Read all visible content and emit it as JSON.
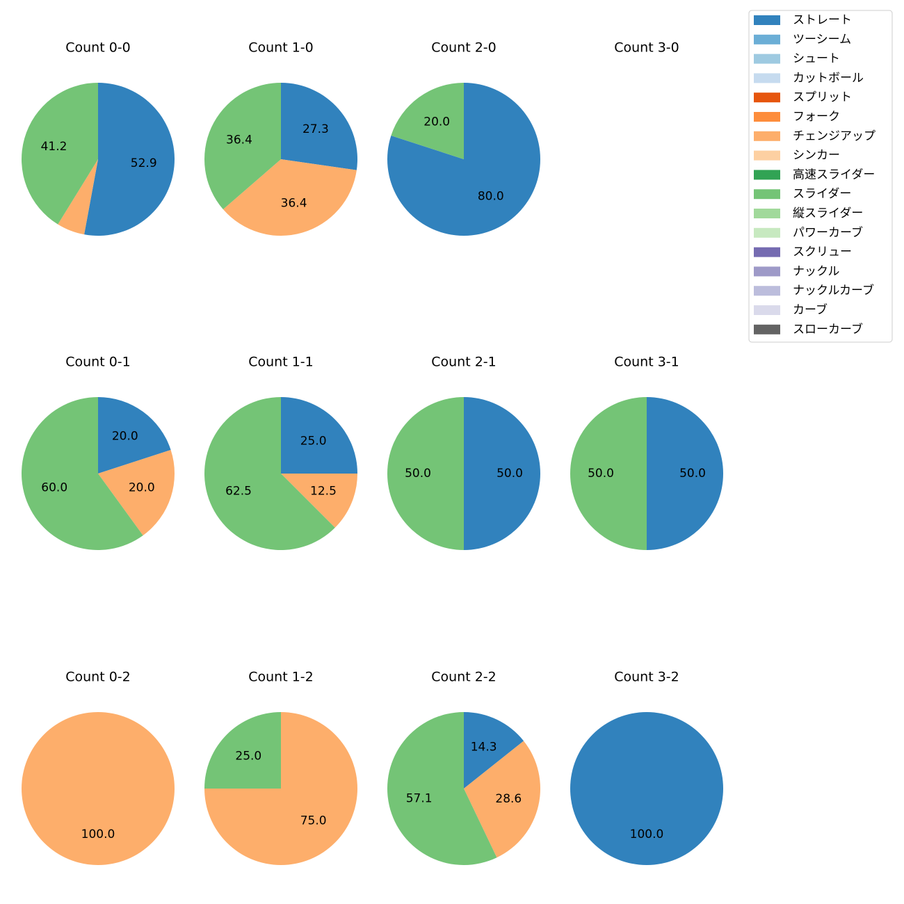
{
  "chart_data": [
    {
      "type": "pie",
      "title": "Count 0-0",
      "values": [
        52.9,
        5.9,
        41.2
      ],
      "value_labels": [
        "52.9",
        null,
        "41.2"
      ],
      "colors": [
        "#3182bd",
        "#fdae6b",
        "#74c476"
      ]
    },
    {
      "type": "pie",
      "title": "Count 1-0",
      "values": [
        27.3,
        36.4,
        36.4
      ],
      "value_labels": [
        "27.3",
        "36.4",
        "36.4"
      ],
      "colors": [
        "#3182bd",
        "#fdae6b",
        "#74c476"
      ]
    },
    {
      "type": "pie",
      "title": "Count 2-0",
      "values": [
        80.0,
        20.0
      ],
      "value_labels": [
        "80.0",
        "20.0"
      ],
      "colors": [
        "#3182bd",
        "#74c476"
      ]
    },
    {
      "type": "pie",
      "title": "Count 3-0",
      "values": [],
      "value_labels": [],
      "colors": []
    },
    {
      "type": "pie",
      "title": "Count 0-1",
      "values": [
        20.0,
        20.0,
        60.0
      ],
      "value_labels": [
        "20.0",
        "20.0",
        "60.0"
      ],
      "colors": [
        "#3182bd",
        "#fdae6b",
        "#74c476"
      ]
    },
    {
      "type": "pie",
      "title": "Count 1-1",
      "values": [
        25.0,
        12.5,
        62.5
      ],
      "value_labels": [
        "25.0",
        "12.5",
        "62.5"
      ],
      "colors": [
        "#3182bd",
        "#fdae6b",
        "#74c476"
      ]
    },
    {
      "type": "pie",
      "title": "Count 2-1",
      "values": [
        50.0,
        50.0
      ],
      "value_labels": [
        "50.0",
        "50.0"
      ],
      "colors": [
        "#3182bd",
        "#74c476"
      ]
    },
    {
      "type": "pie",
      "title": "Count 3-1",
      "values": [
        50.0,
        50.0
      ],
      "value_labels": [
        "50.0",
        "50.0"
      ],
      "colors": [
        "#3182bd",
        "#74c476"
      ]
    },
    {
      "type": "pie",
      "title": "Count 0-2",
      "values": [
        100.0
      ],
      "value_labels": [
        "100.0"
      ],
      "colors": [
        "#fdae6b"
      ]
    },
    {
      "type": "pie",
      "title": "Count 1-2",
      "values": [
        75.0,
        25.0
      ],
      "value_labels": [
        "75.0",
        "25.0"
      ],
      "colors": [
        "#fdae6b",
        "#74c476"
      ]
    },
    {
      "type": "pie",
      "title": "Count 2-2",
      "values": [
        14.3,
        28.6,
        57.1
      ],
      "value_labels": [
        "14.3",
        "28.6",
        "57.1"
      ],
      "colors": [
        "#3182bd",
        "#fdae6b",
        "#74c476"
      ]
    },
    {
      "type": "pie",
      "title": "Count 3-2",
      "values": [
        100.0
      ],
      "value_labels": [
        "100.0"
      ],
      "colors": [
        "#3182bd"
      ]
    }
  ],
  "legend": {
    "labels": [
      "ストレート",
      "ツーシーム",
      "シュート",
      "カットボール",
      "スプリット",
      "フォーク",
      "チェンジアップ",
      "シンカー",
      "高速スライダー",
      "スライダー",
      "縦スライダー",
      "パワーカーブ",
      "スクリュー",
      "ナックル",
      "ナックルカーブ",
      "カーブ",
      "スローカーブ"
    ],
    "colors": [
      "#3182bd",
      "#6baed6",
      "#9ecae1",
      "#c6dbef",
      "#e6550d",
      "#fd8d3c",
      "#fdae6b",
      "#fdd0a2",
      "#31a354",
      "#74c476",
      "#a1d99b",
      "#c7e9c0",
      "#756bb1",
      "#9e9ac8",
      "#bcbddc",
      "#dadaeb",
      "#636363"
    ]
  }
}
